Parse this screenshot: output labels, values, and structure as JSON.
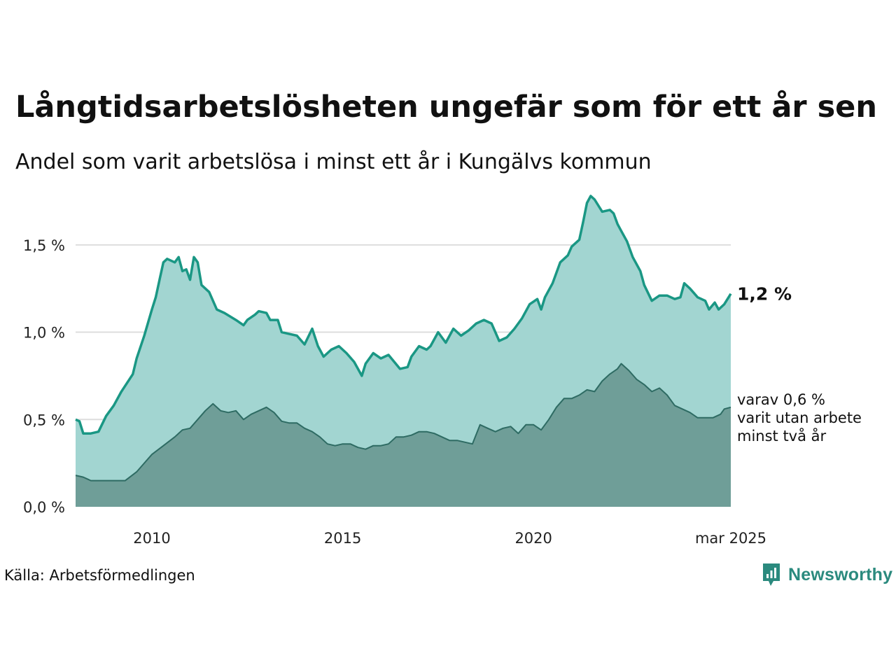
{
  "header": {
    "title": "Långtidsarbetslösheten ungefär som för ett år sen",
    "subtitle": "Andel som varit arbetslösa i minst ett år i Kungälvs kommun"
  },
  "footer": {
    "source": "Källa: Arbetsförmedlingen",
    "brand": "Newsworthy"
  },
  "chart_data": {
    "type": "area",
    "title": "Långtidsarbetslösheten ungefär som för ett år sen",
    "subtitle": "Andel som varit arbetslösa i minst ett år i Kungälvs kommun",
    "ylim": [
      0,
      1.8
    ],
    "xlim": [
      2008.0,
      2025.17
    ],
    "y_ticks": [
      0,
      0.5,
      1.0,
      1.5
    ],
    "y_tick_labels": [
      "0,0 %",
      "0,5 %",
      "1,0 %",
      "1,5 %"
    ],
    "x_ticks": [
      2010,
      2015,
      2020,
      2025.17
    ],
    "x_tick_labels": [
      "2010",
      "2015",
      "2020",
      "mar 2025"
    ],
    "grid": true,
    "colors": {
      "series1_line": "#1a9784",
      "series1_fill": "#a2d5d1",
      "series2_line": "#2e6b63",
      "series2_fill": "#6f9e98",
      "grid": "#dddddd"
    },
    "annotations": {
      "series1_end": "1,2 %",
      "series2_end_lines": [
        "varav 0,6 %",
        "varit utan arbete",
        "minst två år"
      ]
    },
    "series": [
      {
        "name": "",
        "points": [
          [
            2008.0,
            0.5
          ],
          [
            2008.1,
            0.49
          ],
          [
            2008.2,
            0.42
          ],
          [
            2008.4,
            0.42
          ],
          [
            2008.6,
            0.43
          ],
          [
            2008.8,
            0.52
          ],
          [
            2009.0,
            0.58
          ],
          [
            2009.2,
            0.66
          ],
          [
            2009.5,
            0.76
          ],
          [
            2009.6,
            0.85
          ],
          [
            2009.8,
            0.98
          ],
          [
            2010.0,
            1.13
          ],
          [
            2010.1,
            1.2
          ],
          [
            2010.2,
            1.3
          ],
          [
            2010.3,
            1.4
          ],
          [
            2010.4,
            1.42
          ],
          [
            2010.6,
            1.4
          ],
          [
            2010.7,
            1.43
          ],
          [
            2010.8,
            1.35
          ],
          [
            2010.9,
            1.36
          ],
          [
            2011.0,
            1.3
          ],
          [
            2011.1,
            1.43
          ],
          [
            2011.2,
            1.4
          ],
          [
            2011.3,
            1.27
          ],
          [
            2011.5,
            1.23
          ],
          [
            2011.7,
            1.13
          ],
          [
            2011.9,
            1.11
          ],
          [
            2012.2,
            1.07
          ],
          [
            2012.4,
            1.04
          ],
          [
            2012.5,
            1.07
          ],
          [
            2012.7,
            1.1
          ],
          [
            2012.8,
            1.12
          ],
          [
            2013.0,
            1.11
          ],
          [
            2013.1,
            1.07
          ],
          [
            2013.3,
            1.07
          ],
          [
            2013.4,
            1.0
          ],
          [
            2013.6,
            0.99
          ],
          [
            2013.8,
            0.98
          ],
          [
            2014.0,
            0.93
          ],
          [
            2014.2,
            1.02
          ],
          [
            2014.35,
            0.92
          ],
          [
            2014.5,
            0.86
          ],
          [
            2014.7,
            0.9
          ],
          [
            2014.9,
            0.92
          ],
          [
            2015.1,
            0.88
          ],
          [
            2015.3,
            0.83
          ],
          [
            2015.5,
            0.75
          ],
          [
            2015.6,
            0.82
          ],
          [
            2015.8,
            0.88
          ],
          [
            2016.0,
            0.85
          ],
          [
            2016.2,
            0.87
          ],
          [
            2016.5,
            0.79
          ],
          [
            2016.7,
            0.8
          ],
          [
            2016.8,
            0.86
          ],
          [
            2017.0,
            0.92
          ],
          [
            2017.2,
            0.9
          ],
          [
            2017.3,
            0.92
          ],
          [
            2017.5,
            1.0
          ],
          [
            2017.7,
            0.94
          ],
          [
            2017.9,
            1.02
          ],
          [
            2018.1,
            0.98
          ],
          [
            2018.3,
            1.01
          ],
          [
            2018.5,
            1.05
          ],
          [
            2018.7,
            1.07
          ],
          [
            2018.9,
            1.05
          ],
          [
            2019.1,
            0.95
          ],
          [
            2019.3,
            0.97
          ],
          [
            2019.5,
            1.02
          ],
          [
            2019.7,
            1.08
          ],
          [
            2019.9,
            1.16
          ],
          [
            2020.1,
            1.19
          ],
          [
            2020.2,
            1.13
          ],
          [
            2020.3,
            1.2
          ],
          [
            2020.5,
            1.28
          ],
          [
            2020.7,
            1.4
          ],
          [
            2020.9,
            1.44
          ],
          [
            2021.0,
            1.49
          ],
          [
            2021.2,
            1.53
          ],
          [
            2021.3,
            1.63
          ],
          [
            2021.4,
            1.74
          ],
          [
            2021.5,
            1.78
          ],
          [
            2021.6,
            1.76
          ],
          [
            2021.8,
            1.69
          ],
          [
            2022.0,
            1.7
          ],
          [
            2022.1,
            1.68
          ],
          [
            2022.2,
            1.62
          ],
          [
            2022.3,
            1.58
          ],
          [
            2022.45,
            1.52
          ],
          [
            2022.6,
            1.43
          ],
          [
            2022.8,
            1.35
          ],
          [
            2022.9,
            1.27
          ],
          [
            2023.1,
            1.18
          ],
          [
            2023.3,
            1.21
          ],
          [
            2023.5,
            1.21
          ],
          [
            2023.7,
            1.19
          ],
          [
            2023.85,
            1.2
          ],
          [
            2023.95,
            1.28
          ],
          [
            2024.1,
            1.25
          ],
          [
            2024.3,
            1.2
          ],
          [
            2024.5,
            1.18
          ],
          [
            2024.6,
            1.13
          ],
          [
            2024.75,
            1.17
          ],
          [
            2024.85,
            1.13
          ],
          [
            2025.0,
            1.16
          ],
          [
            2025.17,
            1.22
          ]
        ]
      },
      {
        "name": "",
        "points": [
          [
            2008.0,
            0.18
          ],
          [
            2008.2,
            0.17
          ],
          [
            2008.4,
            0.15
          ],
          [
            2008.6,
            0.15
          ],
          [
            2008.8,
            0.15
          ],
          [
            2009.0,
            0.15
          ],
          [
            2009.3,
            0.15
          ],
          [
            2009.6,
            0.2
          ],
          [
            2009.8,
            0.25
          ],
          [
            2010.0,
            0.3
          ],
          [
            2010.3,
            0.35
          ],
          [
            2010.6,
            0.4
          ],
          [
            2010.8,
            0.44
          ],
          [
            2011.0,
            0.45
          ],
          [
            2011.2,
            0.5
          ],
          [
            2011.4,
            0.55
          ],
          [
            2011.6,
            0.59
          ],
          [
            2011.8,
            0.55
          ],
          [
            2012.0,
            0.54
          ],
          [
            2012.2,
            0.55
          ],
          [
            2012.4,
            0.5
          ],
          [
            2012.6,
            0.53
          ],
          [
            2012.8,
            0.55
          ],
          [
            2013.0,
            0.57
          ],
          [
            2013.2,
            0.54
          ],
          [
            2013.4,
            0.49
          ],
          [
            2013.6,
            0.48
          ],
          [
            2013.8,
            0.48
          ],
          [
            2014.0,
            0.45
          ],
          [
            2014.2,
            0.43
          ],
          [
            2014.4,
            0.4
          ],
          [
            2014.6,
            0.36
          ],
          [
            2014.8,
            0.35
          ],
          [
            2015.0,
            0.36
          ],
          [
            2015.2,
            0.36
          ],
          [
            2015.4,
            0.34
          ],
          [
            2015.6,
            0.33
          ],
          [
            2015.8,
            0.35
          ],
          [
            2016.0,
            0.35
          ],
          [
            2016.2,
            0.36
          ],
          [
            2016.4,
            0.4
          ],
          [
            2016.6,
            0.4
          ],
          [
            2016.8,
            0.41
          ],
          [
            2017.0,
            0.43
          ],
          [
            2017.2,
            0.43
          ],
          [
            2017.4,
            0.42
          ],
          [
            2017.6,
            0.4
          ],
          [
            2017.8,
            0.38
          ],
          [
            2018.0,
            0.38
          ],
          [
            2018.2,
            0.37
          ],
          [
            2018.4,
            0.36
          ],
          [
            2018.6,
            0.47
          ],
          [
            2018.8,
            0.45
          ],
          [
            2019.0,
            0.43
          ],
          [
            2019.2,
            0.45
          ],
          [
            2019.4,
            0.46
          ],
          [
            2019.6,
            0.42
          ],
          [
            2019.8,
            0.47
          ],
          [
            2020.0,
            0.47
          ],
          [
            2020.2,
            0.44
          ],
          [
            2020.4,
            0.5
          ],
          [
            2020.6,
            0.57
          ],
          [
            2020.8,
            0.62
          ],
          [
            2021.0,
            0.62
          ],
          [
            2021.2,
            0.64
          ],
          [
            2021.4,
            0.67
          ],
          [
            2021.6,
            0.66
          ],
          [
            2021.8,
            0.72
          ],
          [
            2022.0,
            0.76
          ],
          [
            2022.2,
            0.79
          ],
          [
            2022.3,
            0.82
          ],
          [
            2022.5,
            0.78
          ],
          [
            2022.7,
            0.73
          ],
          [
            2022.9,
            0.7
          ],
          [
            2023.1,
            0.66
          ],
          [
            2023.3,
            0.68
          ],
          [
            2023.5,
            0.64
          ],
          [
            2023.7,
            0.58
          ],
          [
            2023.9,
            0.56
          ],
          [
            2024.1,
            0.54
          ],
          [
            2024.3,
            0.51
          ],
          [
            2024.5,
            0.51
          ],
          [
            2024.7,
            0.51
          ],
          [
            2024.9,
            0.53
          ],
          [
            2025.0,
            0.56
          ],
          [
            2025.17,
            0.57
          ]
        ]
      }
    ]
  }
}
